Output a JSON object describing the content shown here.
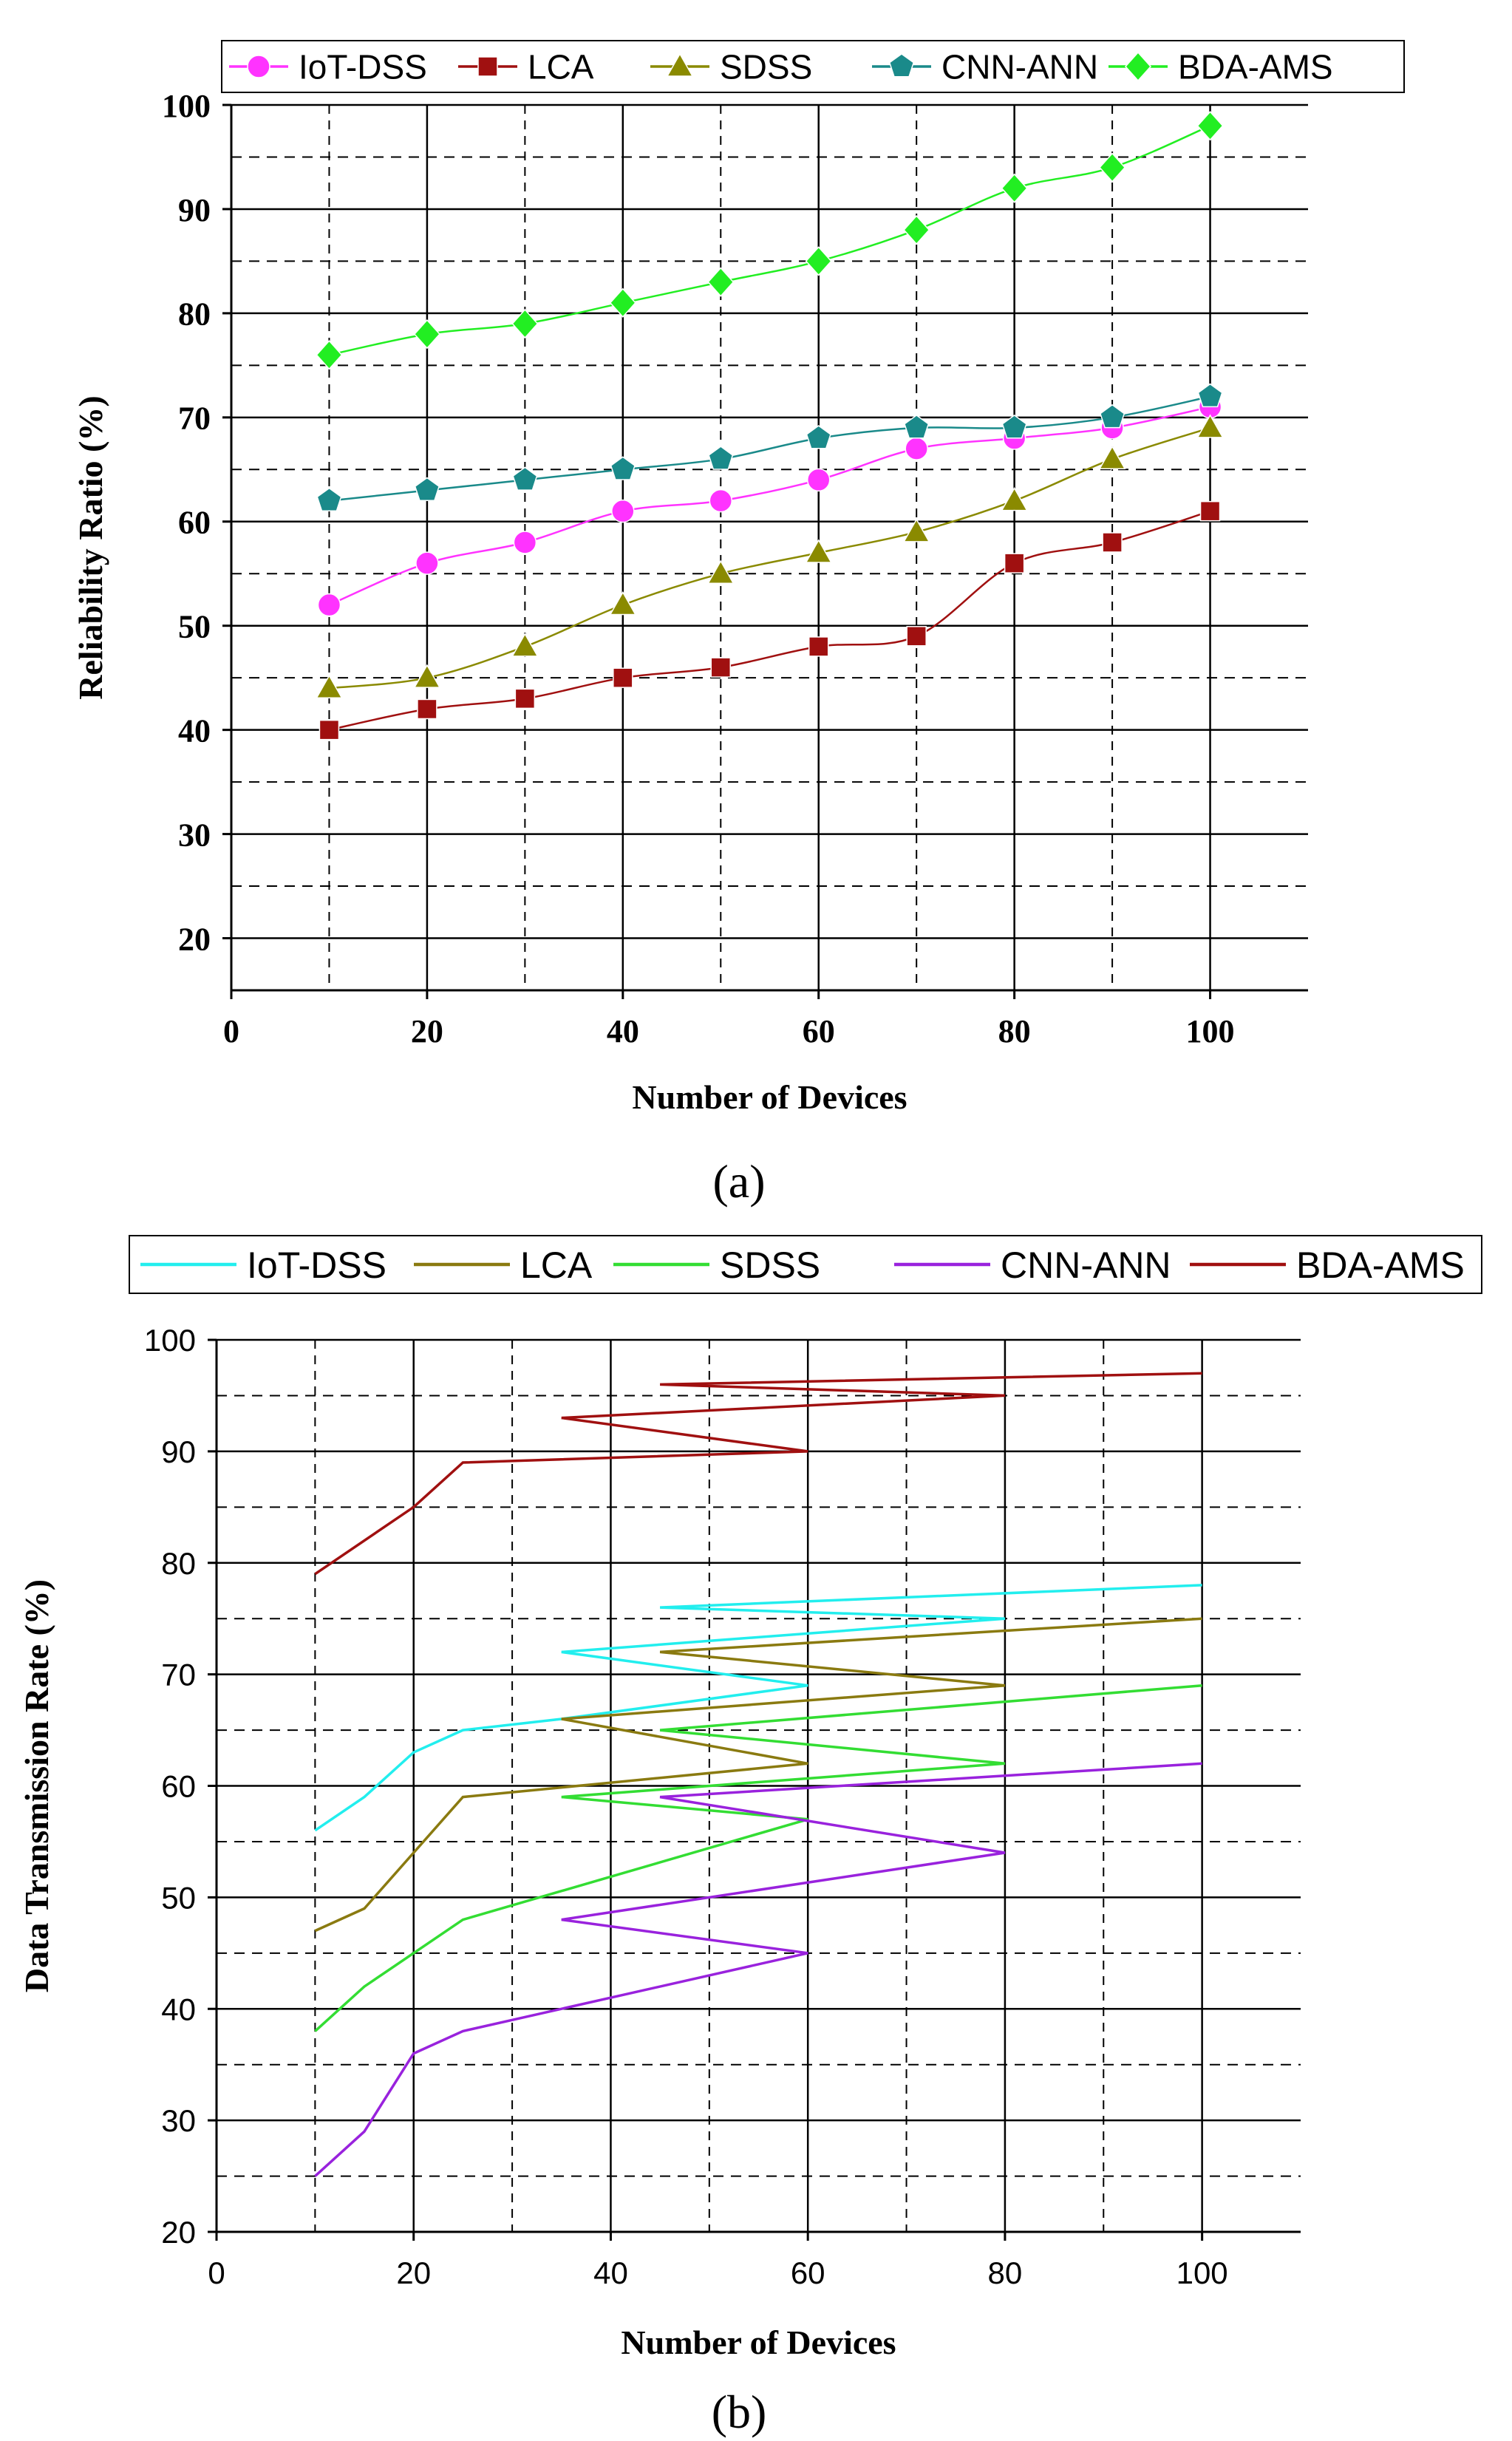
{
  "chart_data": [
    {
      "type": "line",
      "panel_label": "a",
      "title": "",
      "xlabel": "Number of Devices",
      "ylabel": "Reliability Ratio (%)",
      "xlim": [
        0,
        110
      ],
      "ylim": [
        15,
        100
      ],
      "xticks": [
        0,
        20,
        40,
        60,
        80,
        100
      ],
      "yticks": [
        20,
        30,
        40,
        50,
        60,
        70,
        80,
        90,
        100
      ],
      "grid": "solid major, dashed minor",
      "legend": "top",
      "series": [
        {
          "name": "IoT-DSS",
          "color": "#ff33ff",
          "marker": "circle",
          "x": [
            10,
            20,
            30,
            40,
            50,
            60,
            70,
            80,
            90,
            100
          ],
          "values": [
            52,
            56,
            58,
            61,
            62,
            64,
            67,
            68,
            69,
            71
          ]
        },
        {
          "name": "LCA",
          "color": "#a01010",
          "marker": "square",
          "x": [
            10,
            20,
            30,
            40,
            50,
            60,
            70,
            80,
            90,
            100
          ],
          "values": [
            40,
            42,
            43,
            45,
            46,
            48,
            49,
            56,
            58,
            61
          ]
        },
        {
          "name": "SDSS",
          "color": "#8a8a00",
          "marker": "triangle",
          "x": [
            10,
            20,
            30,
            40,
            50,
            60,
            70,
            80,
            90,
            100
          ],
          "values": [
            44,
            45,
            48,
            52,
            55,
            57,
            59,
            62,
            66,
            69
          ]
        },
        {
          "name": "CNN-ANN",
          "color": "#1a8a8a",
          "marker": "pentagon",
          "x": [
            10,
            20,
            30,
            40,
            50,
            60,
            70,
            80,
            90,
            100
          ],
          "values": [
            62,
            63,
            64,
            65,
            66,
            68,
            69,
            69,
            70,
            72
          ]
        },
        {
          "name": "BDA-AMS",
          "color": "#22ee22",
          "marker": "diamond",
          "x": [
            10,
            20,
            30,
            40,
            50,
            60,
            70,
            80,
            90,
            100
          ],
          "values": [
            76,
            78,
            79,
            81,
            83,
            85,
            88,
            92,
            94,
            98
          ]
        }
      ]
    },
    {
      "type": "line",
      "panel_label": "b",
      "title": "",
      "xlabel": "Number of Devices",
      "ylabel": "Data Transmission Rate (%)",
      "xlim": [
        0,
        110
      ],
      "ylim": [
        20,
        100
      ],
      "xticks": [
        0,
        20,
        40,
        60,
        80,
        100
      ],
      "yticks": [
        20,
        30,
        40,
        50,
        60,
        70,
        80,
        90,
        100
      ],
      "grid": "solid major, dashed minor",
      "legend": "top",
      "series": [
        {
          "name": "IoT-DSS",
          "color": "#22eeee",
          "x": [
            10,
            15,
            20,
            25,
            35,
            60,
            35,
            80,
            45,
            100
          ],
          "values": [
            56,
            59,
            63,
            65,
            66,
            69,
            72,
            75,
            76,
            78
          ]
        },
        {
          "name": "LCA",
          "color": "#8a7a10",
          "x": [
            10,
            15,
            20,
            25,
            60,
            35,
            80,
            45,
            100
          ],
          "values": [
            47,
            49,
            54,
            59,
            62,
            66,
            69,
            72,
            75
          ]
        },
        {
          "name": "SDSS",
          "color": "#33dd33",
          "x": [
            10,
            15,
            25,
            60,
            35,
            80,
            45,
            100
          ],
          "values": [
            38,
            42,
            48,
            57,
            59,
            62,
            65,
            69
          ]
        },
        {
          "name": "CNN-ANN",
          "color": "#9922dd",
          "x": [
            10,
            15,
            20,
            25,
            60,
            35,
            80,
            45,
            100
          ],
          "values": [
            25,
            29,
            36,
            38,
            45,
            48,
            54,
            59,
            62
          ]
        },
        {
          "name": "BDA-AMS",
          "color": "#a01010",
          "x": [
            10,
            20,
            25,
            60,
            35,
            80,
            45,
            100
          ],
          "values": [
            79,
            85,
            89,
            90,
            93,
            95,
            96,
            97
          ]
        }
      ]
    }
  ]
}
